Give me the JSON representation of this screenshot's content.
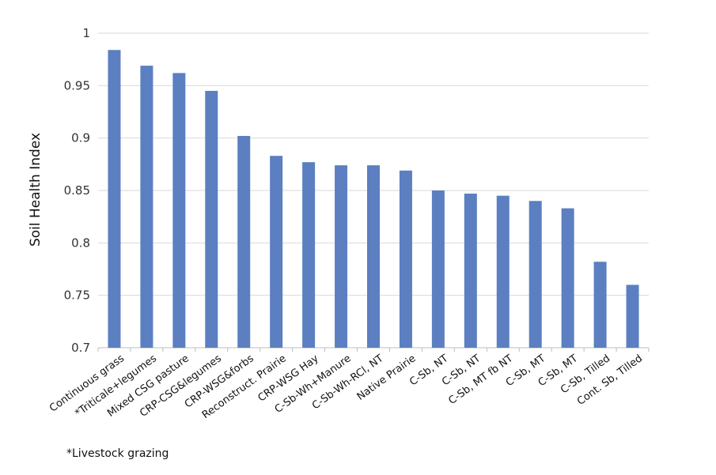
{
  "chart_data": {
    "type": "bar",
    "ylabel": "Soil Health Index",
    "xlabel": "",
    "ylim": [
      0.7,
      1.0
    ],
    "yticks": [
      "0.7",
      "0.75",
      "0.8",
      "0.85",
      "0.9",
      "0.95",
      "1"
    ],
    "grid": true,
    "bar_color": "#5B7FC1",
    "categories": [
      "Continuous grass",
      "*Triticale+legumes",
      "Mixed CSG pasture",
      "CRP-CSG&legumes",
      "CRP-WSG&forbs",
      "Reconstruct. Prairie",
      "CRP-WSG Hay",
      "C-Sb-Wh+Manure",
      "C-Sb-Wh-RCl, NT",
      "Native Prairie",
      "C-Sb, NT",
      "C-Sb, NT",
      "C-Sb, MT fb NT",
      "C-Sb, MT",
      "C-Sb, MT",
      "C-Sb, Tilled",
      "Cont. Sb, Tilled"
    ],
    "values": [
      0.984,
      0.969,
      0.962,
      0.945,
      0.902,
      0.883,
      0.877,
      0.874,
      0.874,
      0.869,
      0.85,
      0.847,
      0.845,
      0.84,
      0.833,
      0.782,
      0.76
    ]
  },
  "footnote": "*Livestock grazing"
}
